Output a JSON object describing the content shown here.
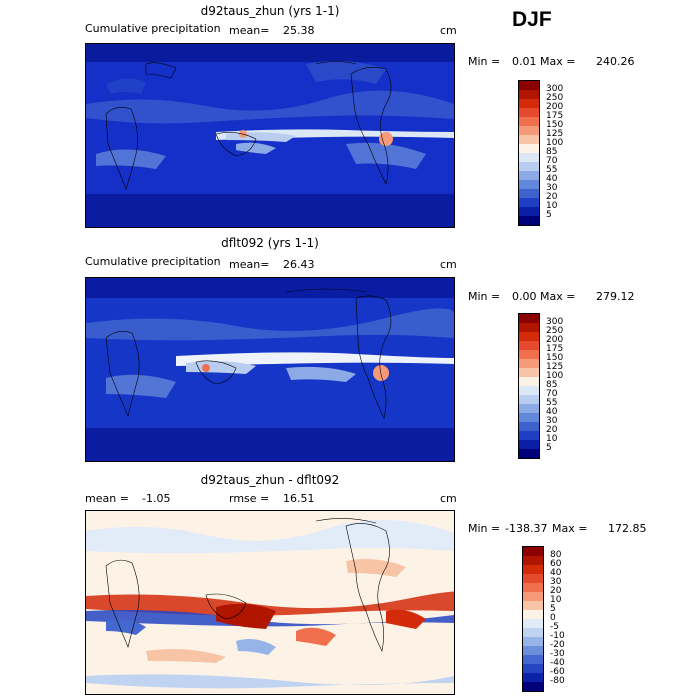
{
  "season": "DJF",
  "panels": [
    {
      "title": "d92taus_zhun (yrs 1-1)",
      "left_label": "Cumulative precipitation",
      "stat_label": "mean=",
      "stat_value": "25.38",
      "units": "cm",
      "min_label": "Min =",
      "min_value": "0.01",
      "max_label": "Max =",
      "max_value": "240.26",
      "levels": [
        "300",
        "250",
        "200",
        "175",
        "150",
        "125",
        "100",
        "85",
        "70",
        "55",
        "40",
        "30",
        "20",
        "10",
        "5"
      ],
      "colors": [
        "#8b0000",
        "#b01500",
        "#d32a0a",
        "#e54a2c",
        "#f0704e",
        "#f49a78",
        "#f8c4a6",
        "#fdf2e6",
        "#dde8f7",
        "#b8cdf0",
        "#8caae6",
        "#6286da",
        "#3f61ce",
        "#1f3ec4",
        "#0a1ea6",
        "#00007a"
      ]
    },
    {
      "title": "dflt092 (yrs 1-1)",
      "left_label": "Cumulative precipitation",
      "stat_label": "mean=",
      "stat_value": "26.43",
      "units": "cm",
      "min_label": "Min =",
      "min_value": "0.00",
      "max_label": "Max =",
      "max_value": "279.12",
      "levels": [
        "300",
        "250",
        "200",
        "175",
        "150",
        "125",
        "100",
        "85",
        "70",
        "55",
        "40",
        "30",
        "20",
        "10",
        "5"
      ],
      "colors": [
        "#8b0000",
        "#b01500",
        "#d32a0a",
        "#e54a2c",
        "#f0704e",
        "#f49a78",
        "#f8c4a6",
        "#fdf2e6",
        "#dde8f7",
        "#b8cdf0",
        "#8caae6",
        "#6286da",
        "#3f61ce",
        "#1f3ec4",
        "#0a1ea6",
        "#00007a"
      ]
    },
    {
      "title": "d92taus_zhun - dflt092",
      "left_label": "mean =",
      "left_value": "-1.05",
      "stat_label": "rmse =",
      "stat_value": "16.51",
      "units": "cm",
      "min_label": "Min =",
      "min_value": "-138.37",
      "max_label": "Max =",
      "max_value": "172.85",
      "levels": [
        "80",
        "60",
        "40",
        "30",
        "20",
        "10",
        "5",
        "0",
        "-5",
        "-10",
        "-20",
        "-30",
        "-40",
        "-60",
        "-80"
      ],
      "colors": [
        "#8b0000",
        "#b01500",
        "#d32a0a",
        "#e54a2c",
        "#f0704e",
        "#f49a78",
        "#f8c4a6",
        "#fdf2e6",
        "#e2ecf8",
        "#c0d4f2",
        "#97b4e8",
        "#6c8fdc",
        "#4468cf",
        "#2545c3",
        "#0c22a8",
        "#00007a"
      ]
    }
  ]
}
